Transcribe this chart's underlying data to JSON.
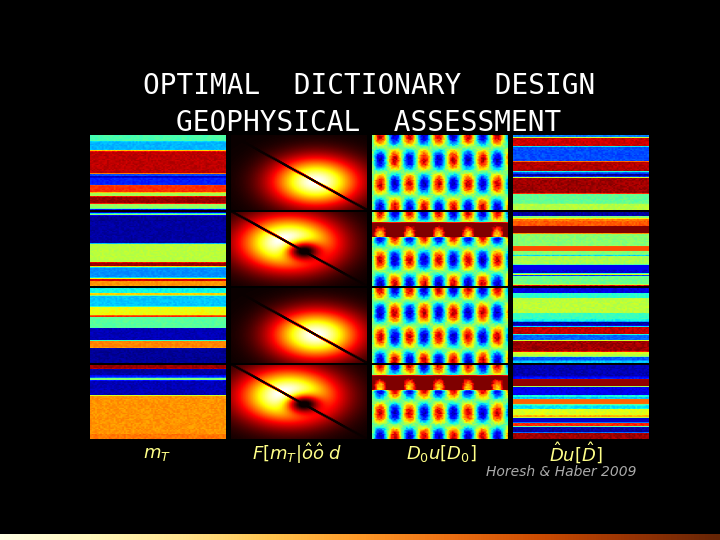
{
  "title_line1": "OPTIMAL  DICTIONARY  DESIGN",
  "title_line2": "GEOPHYSICAL  ASSESSMENT",
  "title_color": "#ffffff",
  "title_fontsize": 20,
  "background_color": "#000000",
  "label_color": "#ffff88",
  "label_fontsize": 13,
  "credit": "Horesh & Haber 2009",
  "credit_color": "#aaaaaa",
  "credit_fontsize": 10,
  "n_cols": 4,
  "n_rows": 4,
  "seed": 42
}
